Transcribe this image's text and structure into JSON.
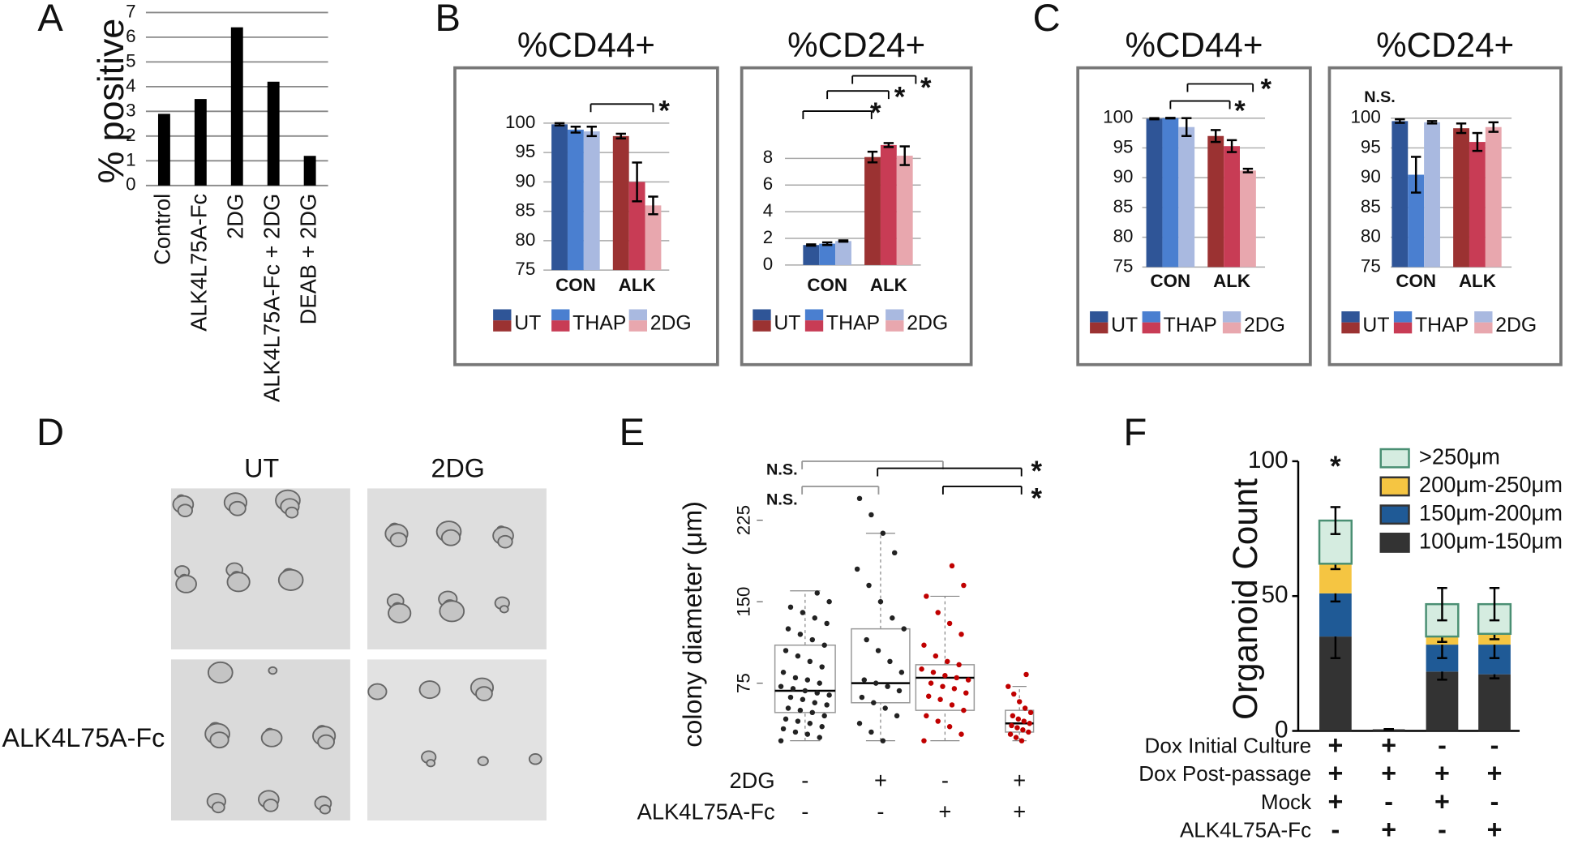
{
  "panels": [
    "A",
    "B",
    "C",
    "D",
    "E",
    "F"
  ],
  "images": {
    "columns": [
      "UT",
      "2DG"
    ],
    "rows": [
      "ALK4L75A-Fc"
    ]
  },
  "chart_data": [
    {
      "type": "bar",
      "ylabel": "% positive",
      "categories": [
        "Control",
        "ALK4L75A-Fc",
        "2DG",
        "ALK4L75A-Fc + 2DG",
        "DEAB + 2DG"
      ],
      "values": [
        2.9,
        3.5,
        6.4,
        4.2,
        1.2
      ],
      "color": "#000000",
      "ylim": [
        0,
        7
      ],
      "yticks": [
        0,
        1,
        2,
        3,
        4,
        5,
        6,
        7
      ],
      "grid": true
    },
    {
      "type": "grouped_bar",
      "title": "%CD44+",
      "categories": [
        "CON",
        "ALK"
      ],
      "series": [
        {
          "name": "UT",
          "colors": [
            "#2f5597",
            "#9b3232"
          ],
          "values": [
            99.8,
            97.8
          ],
          "errors": [
            0.2,
            0.4
          ]
        },
        {
          "name": "THAP",
          "colors": [
            "#4a7fd0",
            "#c83c55"
          ],
          "values": [
            98.9,
            90
          ],
          "errors": [
            0.5,
            3.3
          ]
        },
        {
          "name": "2DG",
          "colors": [
            "#a9b9e0",
            "#e8a7ae"
          ],
          "values": [
            98.6,
            86
          ],
          "errors": [
            0.8,
            1.5
          ]
        }
      ],
      "ylim": [
        75,
        100
      ],
      "yticks": [
        75,
        80,
        85,
        90,
        95,
        100
      ],
      "grid": true,
      "annotations": [
        "*"
      ]
    },
    {
      "type": "grouped_bar",
      "title": "%CD24+",
      "categories": [
        "CON",
        "ALK"
      ],
      "series": [
        {
          "name": "UT",
          "colors": [
            "#2f5597",
            "#9b3232"
          ],
          "values": [
            1.5,
            8.1
          ],
          "errors": [
            0.05,
            0.4
          ]
        },
        {
          "name": "THAP",
          "colors": [
            "#4a7fd0",
            "#c83c55"
          ],
          "values": [
            1.6,
            9.0
          ],
          "errors": [
            0.1,
            0.15
          ]
        },
        {
          "name": "2DG",
          "colors": [
            "#a9b9e0",
            "#e8a7ae"
          ],
          "values": [
            1.8,
            8.2
          ],
          "errors": [
            0.05,
            0.7
          ]
        }
      ],
      "ylim": [
        0,
        9
      ],
      "yticks": [
        0,
        2,
        4,
        6,
        8
      ],
      "grid": true,
      "annotations": [
        "*",
        "*",
        "*"
      ]
    },
    {
      "type": "grouped_bar",
      "title": "%CD44+",
      "categories": [
        "CON",
        "ALK"
      ],
      "series": [
        {
          "name": "UT",
          "colors": [
            "#2f5597",
            "#9b3232"
          ],
          "values": [
            99.9,
            97
          ],
          "errors": [
            0.1,
            1
          ]
        },
        {
          "name": "THAP",
          "colors": [
            "#4a7fd0",
            "#c83c55"
          ],
          "values": [
            100,
            95.3
          ],
          "errors": [
            0.05,
            1
          ]
        },
        {
          "name": "2DG",
          "colors": [
            "#a9b9e0",
            "#e8a7ae"
          ],
          "values": [
            98.5,
            91.2
          ],
          "errors": [
            1.5,
            0.3
          ]
        }
      ],
      "ylim": [
        75,
        100
      ],
      "yticks": [
        75,
        80,
        85,
        90,
        95,
        100
      ],
      "grid": true,
      "annotations": [
        "*",
        "*"
      ]
    },
    {
      "type": "grouped_bar",
      "title": "%CD24+",
      "categories": [
        "CON",
        "ALK"
      ],
      "series": [
        {
          "name": "UT",
          "colors": [
            "#2f5597",
            "#9b3232"
          ],
          "values": [
            99.5,
            98.3
          ],
          "errors": [
            0.3,
            0.8
          ]
        },
        {
          "name": "THAP",
          "colors": [
            "#4a7fd0",
            "#c83c55"
          ],
          "values": [
            90.5,
            96
          ],
          "errors": [
            3,
            1.5
          ]
        },
        {
          "name": "2DG",
          "colors": [
            "#a9b9e0",
            "#e8a7ae"
          ],
          "values": [
            99.3,
            98.5
          ],
          "errors": [
            0.2,
            0.8
          ]
        }
      ],
      "ylim": [
        75,
        100
      ],
      "yticks": [
        75,
        80,
        85,
        90,
        95,
        100
      ],
      "grid": true,
      "annotations": [
        "N.S."
      ]
    },
    {
      "type": "box",
      "ylabel": "colony diameter (μm)",
      "ylim": [
        7,
        245
      ],
      "yticks": [
        75,
        150,
        225
      ],
      "groups": [
        {
          "color": "#222222",
          "whisker_low": 22,
          "q1": 48,
          "median": 68,
          "q3": 110,
          "whisker_high": 160,
          "points": [
            22,
            25,
            28,
            30,
            33,
            35,
            38,
            40,
            42,
            45,
            48,
            50,
            52,
            55,
            57,
            60,
            62,
            64,
            66,
            68,
            70,
            72,
            75,
            78,
            80,
            85,
            90,
            95,
            100,
            105,
            110,
            115,
            120,
            125,
            130,
            135,
            140,
            145,
            150,
            158
          ]
        },
        {
          "color": "#222222",
          "whisker_low": 22,
          "q1": 57,
          "median": 75,
          "q3": 125,
          "whisker_high": 213,
          "points": [
            22,
            30,
            38,
            45,
            52,
            57,
            62,
            68,
            72,
            75,
            78,
            85,
            95,
            105,
            115,
            125,
            135,
            150,
            165,
            180,
            195,
            213,
            230,
            245
          ]
        },
        {
          "color": "#c00000",
          "whisker_low": 22,
          "q1": 50,
          "median": 80,
          "q3": 92,
          "whisker_high": 155,
          "points": [
            22,
            28,
            35,
            40,
            45,
            50,
            55,
            60,
            63,
            66,
            70,
            72,
            75,
            78,
            80,
            82,
            85,
            88,
            92,
            95,
            100,
            110,
            120,
            130,
            140,
            155,
            165,
            183
          ]
        },
        {
          "color": "#c00000",
          "whisker_low": 22,
          "q1": 30,
          "median": 38,
          "q3": 50,
          "whisker_high": 72,
          "points": [
            22,
            25,
            28,
            30,
            32,
            34,
            36,
            38,
            40,
            42,
            45,
            48,
            52,
            58,
            65,
            72,
            83
          ]
        }
      ],
      "rows": [
        {
          "label": "2DG",
          "values": [
            "-",
            "+",
            "-",
            "+"
          ]
        },
        {
          "label": "ALK4L75A-Fc",
          "values": [
            "-",
            "-",
            "+",
            "+"
          ]
        }
      ],
      "annotations": [
        "N.S.",
        "N.S.",
        "*",
        "*"
      ]
    },
    {
      "type": "stacked_bar",
      "ylabel": "Organoid Count",
      "ylim": [
        0,
        100
      ],
      "yticks": [
        0,
        50,
        100
      ],
      "series": [
        {
          "name": "100μm-150μm",
          "color": "#333333",
          "values": [
            35,
            0.6,
            22,
            21
          ],
          "errors": [
            8,
            0,
            3,
            1.5
          ]
        },
        {
          "name": "150μm-200μm",
          "color": "#1f5a96",
          "values": [
            16,
            0,
            10,
            11
          ],
          "errors": [
            3,
            0,
            5,
            5
          ]
        },
        {
          "name": "200μm-250μm",
          "color": "#f5c542",
          "values": [
            11,
            0,
            3,
            4
          ],
          "errors": [
            2,
            0,
            2,
            2
          ]
        },
        {
          "name": ">250μm",
          "color": "#d5ece0",
          "values": [
            16,
            0,
            12,
            11
          ],
          "errors": [
            5,
            0,
            6,
            6
          ]
        }
      ],
      "rows": [
        {
          "label": "Dox Initial Culture",
          "values": [
            "+",
            "+",
            "-",
            "-"
          ]
        },
        {
          "label": "Dox Post-passage",
          "values": [
            "+",
            "+",
            "+",
            "+"
          ]
        },
        {
          "label": "Mock",
          "values": [
            "+",
            "-",
            "+",
            "-"
          ]
        },
        {
          "label": "ALK4L75A-Fc",
          "values": [
            "-",
            "+",
            "-",
            "+"
          ]
        }
      ],
      "annotations": [
        "*"
      ]
    }
  ]
}
